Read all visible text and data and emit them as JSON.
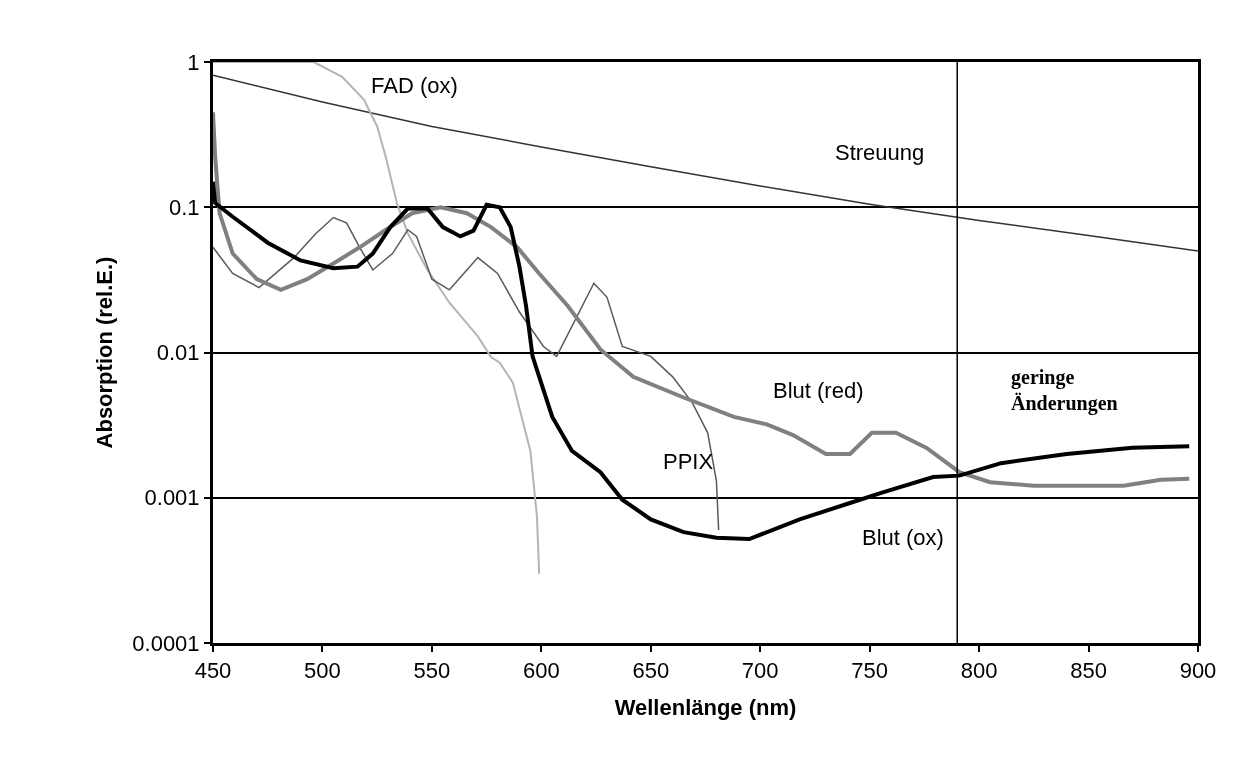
{
  "chart_data": {
    "type": "line",
    "xlabel": "Wellenlänge (nm)",
    "ylabel": "Absorption (rel.E.)",
    "log": "y",
    "grid": "y",
    "legend": false,
    "marker": "none",
    "line_style": "solid",
    "xlim": [
      450,
      900
    ],
    "xticks": [
      450,
      500,
      550,
      600,
      650,
      700,
      750,
      800,
      850,
      900
    ],
    "ylim": [
      0.0001,
      1
    ],
    "yticks": [
      0.0001,
      0.001,
      0.01,
      0.1,
      1
    ],
    "ref_lines": [
      {
        "axis": "x",
        "value": 790,
        "color": "#000000"
      }
    ],
    "annotations": [
      "geringe\nÄnderungen"
    ],
    "series": [
      {
        "name": "Streuung",
        "color": "#333333",
        "x": [
          450,
          500,
          550,
          600,
          650,
          700,
          750,
          800,
          850,
          900
        ],
        "values": [
          0.81,
          0.53,
          0.36,
          0.26,
          0.19,
          0.14,
          0.105,
          0.081,
          0.064,
          0.05
        ]
      },
      {
        "name": "FAD (ox)",
        "color": "#b4b4b4",
        "x": [
          450,
          496,
          509,
          519,
          525,
          529,
          534,
          539,
          548,
          558,
          571,
          577,
          581,
          587,
          595,
          598,
          599
        ],
        "values": [
          1,
          1,
          0.79,
          0.55,
          0.36,
          0.22,
          0.107,
          0.066,
          0.037,
          0.022,
          0.0129,
          0.0093,
          0.0085,
          0.0062,
          0.0021,
          0.00074,
          0.0003
        ]
      },
      {
        "name": "PPIX",
        "color": "#5a5a5a",
        "x": [
          450,
          459,
          471,
          487,
          497,
          505,
          511,
          517,
          523,
          532,
          539,
          543,
          550,
          558,
          571,
          580,
          590,
          601,
          607,
          624,
          630,
          637,
          650,
          660,
          669,
          676,
          680,
          681
        ],
        "values": [
          0.053,
          0.035,
          0.028,
          0.045,
          0.066,
          0.085,
          0.078,
          0.053,
          0.037,
          0.048,
          0.07,
          0.063,
          0.032,
          0.027,
          0.045,
          0.035,
          0.019,
          0.011,
          0.0094,
          0.03,
          0.024,
          0.011,
          0.0094,
          0.0068,
          0.0045,
          0.0028,
          0.0013,
          0.0006
        ]
      },
      {
        "name": "Blut (red)",
        "color": "#808080",
        "x": [
          450,
          451,
          453,
          459,
          470,
          481,
          493,
          505,
          517,
          529,
          541,
          554,
          566,
          577,
          589,
          599,
          612,
          627,
          642,
          665,
          688,
          703,
          715,
          730,
          741,
          751,
          762,
          776,
          791,
          805,
          825,
          866,
          883,
          896
        ],
        "values": [
          0.45,
          0.22,
          0.091,
          0.048,
          0.032,
          0.027,
          0.032,
          0.041,
          0.053,
          0.07,
          0.091,
          0.1,
          0.091,
          0.073,
          0.053,
          0.035,
          0.021,
          0.0105,
          0.0068,
          0.0049,
          0.0036,
          0.0032,
          0.0027,
          0.002,
          0.002,
          0.0028,
          0.0028,
          0.0022,
          0.0015,
          0.00128,
          0.00121,
          0.00121,
          0.00133,
          0.00135
        ]
      },
      {
        "name": "Blut (ox)",
        "color": "#000000",
        "x": [
          450,
          451,
          459,
          475,
          490,
          505,
          516,
          523,
          531,
          539,
          548,
          555,
          563,
          569,
          575,
          581,
          586,
          590,
          593,
          596,
          601,
          605,
          614,
          627,
          637,
          650,
          665,
          680,
          695,
          718,
          741,
          756,
          779,
          791,
          810,
          840,
          870,
          896
        ],
        "values": [
          0.15,
          0.107,
          0.086,
          0.057,
          0.043,
          0.038,
          0.039,
          0.048,
          0.073,
          0.098,
          0.098,
          0.073,
          0.063,
          0.069,
          0.104,
          0.1,
          0.073,
          0.039,
          0.021,
          0.0094,
          0.0055,
          0.0036,
          0.0021,
          0.0015,
          0.00097,
          0.00071,
          0.00058,
          0.00053,
          0.00052,
          0.00071,
          0.00092,
          0.00109,
          0.00139,
          0.00142,
          0.00173,
          0.002,
          0.00221,
          0.00226
        ]
      }
    ]
  }
}
